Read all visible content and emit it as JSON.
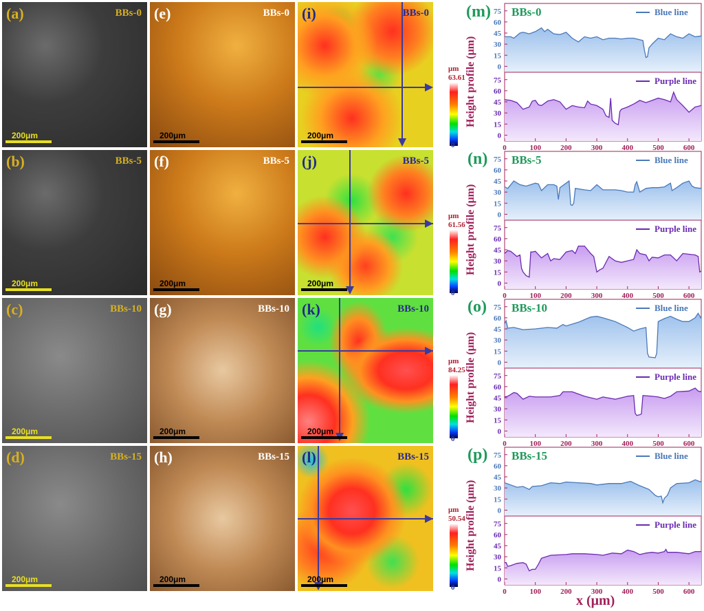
{
  "figure": {
    "scale_bar": "200μm",
    "samples": [
      "BBs-0",
      "BBs-5",
      "BBs-10",
      "BBs-15"
    ],
    "sem_panels": [
      {
        "label": "(a)",
        "sample": "BBs-0"
      },
      {
        "label": "(b)",
        "sample": "BBs-5"
      },
      {
        "label": "(c)",
        "sample": "BBs-10"
      },
      {
        "label": "(d)",
        "sample": "BBs-15"
      }
    ],
    "optical_panels": [
      {
        "label": "(e)",
        "sample": "BBs-0"
      },
      {
        "label": "(f)",
        "sample": "BBs-5"
      },
      {
        "label": "(g)",
        "sample": "BBs-10"
      },
      {
        "label": "(h)",
        "sample": "BBs-15"
      }
    ],
    "height_maps": [
      {
        "label": "(i)",
        "sample": "BBs-0",
        "unit": "μm",
        "max": "63.61",
        "min": "0"
      },
      {
        "label": "(j)",
        "sample": "BBs-5",
        "unit": "μm",
        "max": "61.56",
        "min": "0"
      },
      {
        "label": "(k)",
        "sample": "BBs-10",
        "unit": "μm",
        "max": "84.25",
        "min": "0"
      },
      {
        "label": "(l)",
        "sample": "BBs-15",
        "unit": "μm",
        "max": "50.54",
        "min": "0"
      }
    ],
    "colors": {
      "sem_label": "#d8b020",
      "optical_label": "#ffffff",
      "map_label": "#1f2a8a",
      "profile_label": "#1e9a5a",
      "axis": "#a0205a",
      "blue_line": "#4a78b8",
      "purple_line": "#6a2ab0"
    }
  },
  "chart_data": [
    {
      "type": "area",
      "panel": "(m)",
      "sample": "BBs-0",
      "ylabel": "Height profile (μm)",
      "xlabel": "x (μm)",
      "xlim": [
        0,
        640
      ],
      "ylim": [
        -8,
        85
      ],
      "xticks": [
        0,
        100,
        200,
        300,
        400,
        500,
        600
      ],
      "yticks": [
        0,
        15,
        30,
        45,
        60,
        75
      ],
      "series": [
        {
          "name": "Blue line",
          "x": [
            0,
            20,
            30,
            50,
            60,
            80,
            100,
            120,
            130,
            140,
            160,
            180,
            200,
            220,
            240,
            260,
            280,
            300,
            320,
            340,
            360,
            380,
            400,
            420,
            440,
            450,
            455,
            460,
            465,
            470,
            480,
            500,
            520,
            540,
            560,
            580,
            600,
            620,
            640
          ],
          "y": [
            40,
            40,
            38,
            45,
            46,
            44,
            47,
            52,
            47,
            50,
            44,
            43,
            46,
            38,
            33,
            40,
            38,
            40,
            36,
            38,
            38,
            37,
            38,
            38,
            36,
            35,
            22,
            12,
            13,
            25,
            30,
            38,
            36,
            44,
            40,
            38,
            44,
            40,
            41
          ]
        },
        {
          "name": "Purple line",
          "x": [
            0,
            20,
            40,
            60,
            80,
            90,
            100,
            110,
            120,
            140,
            160,
            180,
            200,
            220,
            240,
            260,
            270,
            280,
            300,
            320,
            330,
            340,
            345,
            350,
            360,
            370,
            375,
            380,
            400,
            420,
            440,
            460,
            480,
            500,
            520,
            540,
            550,
            560,
            580,
            600,
            620,
            640
          ],
          "y": [
            48,
            47,
            44,
            35,
            38,
            46,
            47,
            41,
            40,
            46,
            48,
            45,
            35,
            40,
            38,
            37,
            46,
            42,
            40,
            35,
            26,
            24,
            50,
            20,
            16,
            14,
            32,
            35,
            38,
            42,
            47,
            44,
            47,
            50,
            48,
            45,
            58,
            48,
            40,
            31,
            38,
            40
          ]
        }
      ]
    },
    {
      "type": "area",
      "panel": "(n)",
      "sample": "BBs-5",
      "ylabel": "Height profile (μm)",
      "xlabel": "x (μm)",
      "xlim": [
        0,
        640
      ],
      "ylim": [
        -8,
        85
      ],
      "xticks": [
        0,
        100,
        200,
        300,
        400,
        500,
        600
      ],
      "yticks": [
        0,
        15,
        30,
        45,
        60,
        75
      ],
      "series": [
        {
          "name": "Blue line",
          "x": [
            0,
            10,
            30,
            50,
            70,
            100,
            110,
            120,
            140,
            160,
            170,
            175,
            180,
            200,
            210,
            215,
            220,
            225,
            230,
            260,
            280,
            300,
            320,
            360,
            380,
            400,
            420,
            425,
            430,
            440,
            460,
            480,
            500,
            520,
            540,
            545,
            560,
            580,
            600,
            610,
            620,
            640
          ],
          "y": [
            37,
            35,
            45,
            40,
            38,
            42,
            41,
            32,
            40,
            40,
            38,
            20,
            36,
            42,
            45,
            13,
            12,
            15,
            35,
            33,
            32,
            40,
            33,
            33,
            32,
            30,
            30,
            40,
            44,
            30,
            35,
            36,
            36,
            37,
            42,
            32,
            36,
            42,
            45,
            38,
            36,
            35
          ]
        },
        {
          "name": "Purple line",
          "x": [
            0,
            10,
            20,
            40,
            50,
            55,
            60,
            70,
            80,
            85,
            90,
            100,
            120,
            140,
            150,
            160,
            180,
            200,
            220,
            230,
            240,
            260,
            280,
            290,
            300,
            310,
            320,
            340,
            360,
            380,
            400,
            420,
            430,
            440,
            460,
            470,
            480,
            500,
            520,
            540,
            560,
            580,
            600,
            620,
            630,
            635,
            640
          ],
          "y": [
            40,
            44,
            43,
            36,
            38,
            20,
            15,
            10,
            8,
            42,
            42,
            43,
            34,
            40,
            30,
            33,
            32,
            42,
            44,
            40,
            50,
            50,
            40,
            36,
            15,
            18,
            20,
            36,
            30,
            28,
            30,
            32,
            45,
            40,
            38,
            30,
            35,
            34,
            38,
            38,
            30,
            40,
            39,
            38,
            36,
            15,
            16
          ]
        }
      ]
    },
    {
      "type": "area",
      "panel": "(o)",
      "sample": "BBs-10",
      "ylabel": "Height profile (μm)",
      "xlabel": "x (μm)",
      "xlim": [
        0,
        640
      ],
      "ylim": [
        -8,
        85
      ],
      "xticks": [
        0,
        100,
        200,
        300,
        400,
        500,
        600
      ],
      "yticks": [
        0,
        15,
        30,
        45,
        60,
        75
      ],
      "series": [
        {
          "name": "Blue line",
          "x": [
            0,
            5,
            10,
            30,
            60,
            100,
            140,
            170,
            190,
            200,
            240,
            280,
            300,
            320,
            360,
            400,
            420,
            440,
            460,
            465,
            470,
            490,
            495,
            500,
            520,
            540,
            560,
            580,
            600,
            620,
            630,
            640
          ],
          "y": [
            52,
            56,
            46,
            47,
            44,
            45,
            47,
            46,
            51,
            49,
            54,
            61,
            62,
            60,
            55,
            47,
            42,
            45,
            47,
            12,
            7,
            6,
            12,
            55,
            59,
            62,
            58,
            55,
            55,
            60,
            66,
            59
          ]
        },
        {
          "name": "Purple line",
          "x": [
            0,
            10,
            30,
            40,
            60,
            80,
            100,
            150,
            180,
            190,
            220,
            240,
            260,
            300,
            320,
            360,
            400,
            420,
            425,
            430,
            440,
            445,
            450,
            480,
            500,
            520,
            540,
            560,
            600,
            620,
            630,
            640
          ],
          "y": [
            46,
            47,
            52,
            51,
            43,
            47,
            46,
            46,
            48,
            53,
            53,
            50,
            47,
            43,
            46,
            43,
            47,
            48,
            24,
            21,
            22,
            23,
            48,
            47,
            46,
            44,
            47,
            53,
            54,
            58,
            54,
            53
          ]
        }
      ]
    },
    {
      "type": "area",
      "panel": "(p)",
      "sample": "BBs-15",
      "ylabel": "Height profile (μm)",
      "xlabel": "x (μm)",
      "xlim": [
        0,
        640
      ],
      "ylim": [
        -8,
        85
      ],
      "xticks": [
        0,
        100,
        200,
        300,
        400,
        500,
        600
      ],
      "yticks": [
        0,
        15,
        30,
        45,
        60,
        75
      ],
      "series": [
        {
          "name": "Blue line",
          "x": [
            0,
            20,
            40,
            60,
            80,
            90,
            120,
            150,
            180,
            200,
            240,
            280,
            300,
            340,
            380,
            410,
            440,
            470,
            490,
            500,
            510,
            515,
            520,
            530,
            540,
            560,
            600,
            620,
            640
          ],
          "y": [
            37,
            34,
            31,
            32,
            28,
            32,
            33,
            37,
            36,
            38,
            37,
            36,
            34,
            36,
            36,
            39,
            33,
            28,
            20,
            18,
            19,
            10,
            16,
            20,
            30,
            36,
            37,
            41,
            38
          ]
        },
        {
          "name": "Purple line",
          "x": [
            0,
            5,
            10,
            20,
            40,
            60,
            70,
            80,
            90,
            100,
            110,
            120,
            150,
            200,
            220,
            260,
            300,
            320,
            350,
            380,
            400,
            420,
            440,
            460,
            480,
            500,
            520,
            525,
            530,
            560,
            600,
            620,
            640
          ],
          "y": [
            22,
            22,
            17,
            18,
            21,
            22,
            20,
            11,
            13,
            13,
            20,
            28,
            32,
            33,
            34,
            34,
            33,
            32,
            35,
            34,
            39,
            37,
            33,
            35,
            36,
            35,
            37,
            40,
            36,
            36,
            34,
            37,
            37
          ]
        }
      ]
    }
  ]
}
